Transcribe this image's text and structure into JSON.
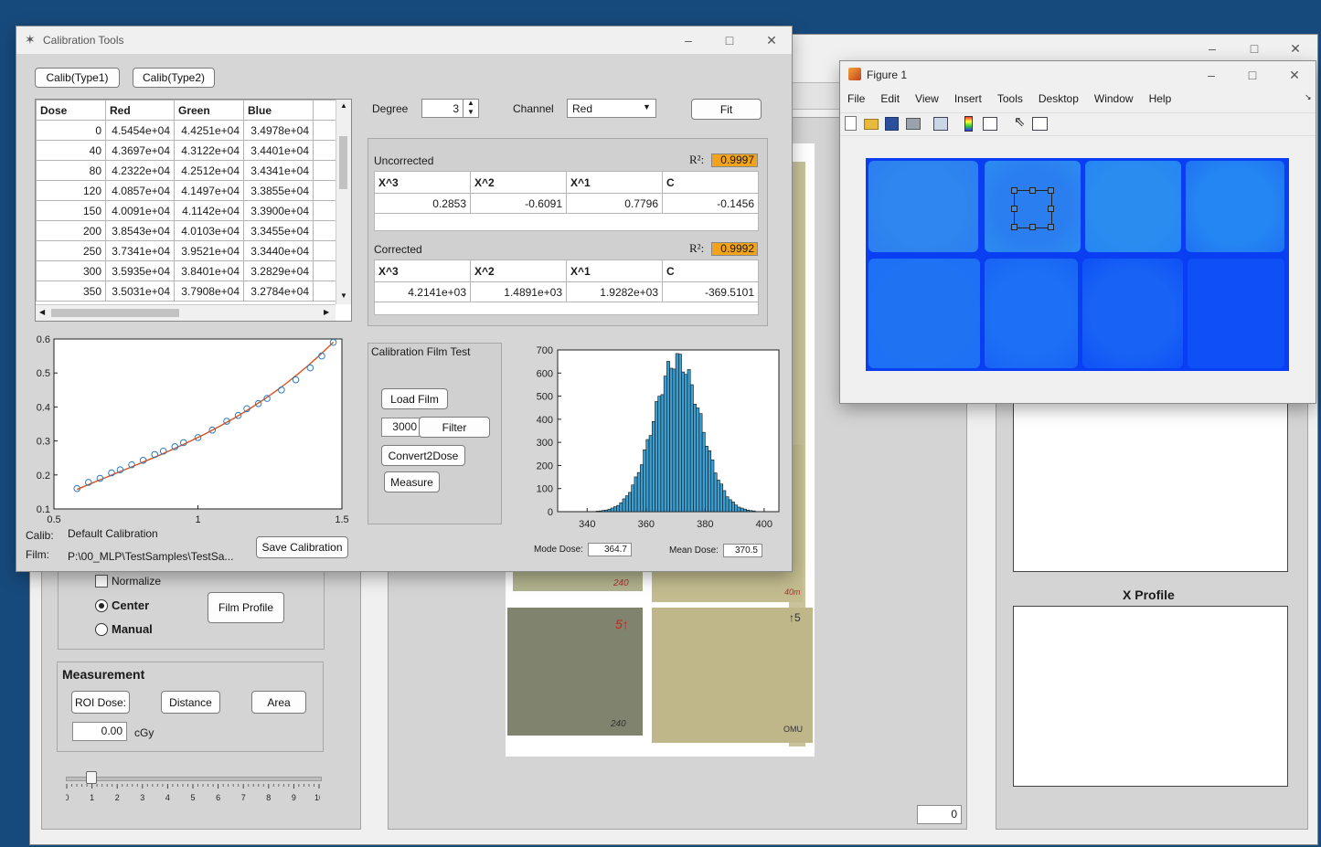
{
  "background_window": {
    "normalize_label": "Normalize",
    "center_label": "Center",
    "manual_label": "Manual",
    "film_profile_label": "Film Profile",
    "measurement_title": "Measurement",
    "roi_dose_label": "ROI Dose:",
    "distance_label": "Distance",
    "area_label": "Area",
    "dose_value": "0.00",
    "dose_unit": "cGy",
    "slider": {
      "ticks": [
        "0",
        "1",
        "2",
        "3",
        "4",
        "5",
        "6",
        "7",
        "8",
        "9",
        "10"
      ],
      "value": 1
    },
    "x_profile_title": "X Profile",
    "index_value": "0",
    "film_labels": {
      "f1": "240",
      "f2": "5↑",
      "f3": "240",
      "f4": "↑5",
      "f5": "OMU",
      "f6": "40m"
    }
  },
  "calib_window": {
    "title": "Calibration Tools",
    "calib_type1_label": "Calib(Type1)",
    "calib_type2_label": "Calib(Type2)",
    "table": {
      "headers": [
        "Dose",
        "Red",
        "Green",
        "Blue"
      ],
      "rows": [
        [
          "0",
          "4.5454e+04",
          "4.4251e+04",
          "3.4978e+04"
        ],
        [
          "40",
          "4.3697e+04",
          "4.3122e+04",
          "3.4401e+04"
        ],
        [
          "80",
          "4.2322e+04",
          "4.2512e+04",
          "3.4341e+04"
        ],
        [
          "120",
          "4.0857e+04",
          "4.1497e+04",
          "3.3855e+04"
        ],
        [
          "150",
          "4.0091e+04",
          "4.1142e+04",
          "3.3900e+04"
        ],
        [
          "200",
          "3.8543e+04",
          "4.0103e+04",
          "3.3455e+04"
        ],
        [
          "250",
          "3.7341e+04",
          "3.9521e+04",
          "3.3440e+04"
        ],
        [
          "300",
          "3.5935e+04",
          "3.8401e+04",
          "3.2829e+04"
        ],
        [
          "350",
          "3.5031e+04",
          "3.7908e+04",
          "3.2784e+04"
        ]
      ]
    },
    "degree_label": "Degree",
    "degree_value": "3",
    "channel_label": "Channel",
    "channel_value": "Red",
    "fit_label": "Fit",
    "uncorrected": {
      "title": "Uncorrected",
      "r2_label": "R²:",
      "r2_value": "0.9997",
      "headers": [
        "X^3",
        "X^2",
        "X^1",
        "C"
      ],
      "values": [
        "0.2853",
        "-0.6091",
        "0.7796",
        "-0.1456"
      ]
    },
    "corrected": {
      "title": "Corrected",
      "r2_label": "R²:",
      "r2_value": "0.9992",
      "headers": [
        "X^3",
        "X^2",
        "X^1",
        "C"
      ],
      "values": [
        "4.2141e+03",
        "1.4891e+03",
        "1.9282e+03",
        "-369.5101"
      ]
    },
    "film_test": {
      "title": "Calibration Film Test",
      "load_film_label": "Load Film",
      "filter_value": "3000",
      "filter_label": "Filter",
      "convert_label": "Convert2Dose",
      "measure_label": "Measure"
    },
    "calib_label": "Calib:",
    "calib_value": "Default Calibration",
    "film_label": "Film:",
    "film_value": "P:\\00_MLP\\TestSamples\\TestSa...",
    "save_calibration_label": "Save Calibration",
    "mode_dose_label": "Mode Dose:",
    "mode_dose_value": "364.7",
    "mean_dose_label": "Mean Dose:",
    "mean_dose_value": "370.5"
  },
  "calib_chart": {
    "type": "line",
    "xlim": [
      0.5,
      1.5
    ],
    "ylim": [
      0.1,
      0.6
    ],
    "xticks": [
      "0.5",
      "1",
      "1.5"
    ],
    "yticks": [
      "0.1",
      "0.2",
      "0.3",
      "0.4",
      "0.5",
      "0.6"
    ],
    "points_x": [
      0.58,
      0.62,
      0.66,
      0.7,
      0.73,
      0.77,
      0.81,
      0.85,
      0.88,
      0.92,
      0.95,
      1.0,
      1.05,
      1.1,
      1.14,
      1.17,
      1.21,
      1.24,
      1.29,
      1.34,
      1.39,
      1.43,
      1.47
    ],
    "points_y": [
      0.16,
      0.178,
      0.19,
      0.206,
      0.215,
      0.23,
      0.243,
      0.26,
      0.27,
      0.283,
      0.295,
      0.31,
      0.332,
      0.358,
      0.375,
      0.395,
      0.41,
      0.425,
      0.45,
      0.48,
      0.515,
      0.55,
      0.59
    ],
    "fit_coefficients": [
      0.2853,
      -0.6091,
      0.7796,
      -0.1456
    ],
    "colors": {
      "marker": "#2a7bbf",
      "fit": "#d9531e"
    }
  },
  "hist_chart": {
    "type": "bar",
    "xlim": [
      330,
      405
    ],
    "ylim": [
      0,
      700
    ],
    "xticks": [
      "340",
      "360",
      "380",
      "400"
    ],
    "yticks": [
      "0",
      "100",
      "200",
      "300",
      "400",
      "500",
      "600",
      "700"
    ],
    "mean": 370,
    "sigma": 8,
    "peak": 700,
    "bin_width": 1,
    "bar_color": "#3b9fd1"
  },
  "figure_window": {
    "title": "Figure 1",
    "menu": [
      "File",
      "Edit",
      "View",
      "Insert",
      "Tools",
      "Desktop",
      "Window",
      "Help"
    ],
    "toolbar_icons": [
      "new-icon",
      "open-icon",
      "save-icon",
      "print-icon",
      "print-preview-icon",
      "colorbar-icon",
      "legend-icon",
      "pointer-icon",
      "property-editor-icon"
    ],
    "film_colors": [
      "#2f86ee",
      "#2b7ef0",
      "#2b8cef",
      "#2486f3",
      "#1f72f2",
      "#1d70f5",
      "#1863f5",
      "#0f50f6"
    ],
    "image_border_color": "#0a3ef2"
  }
}
